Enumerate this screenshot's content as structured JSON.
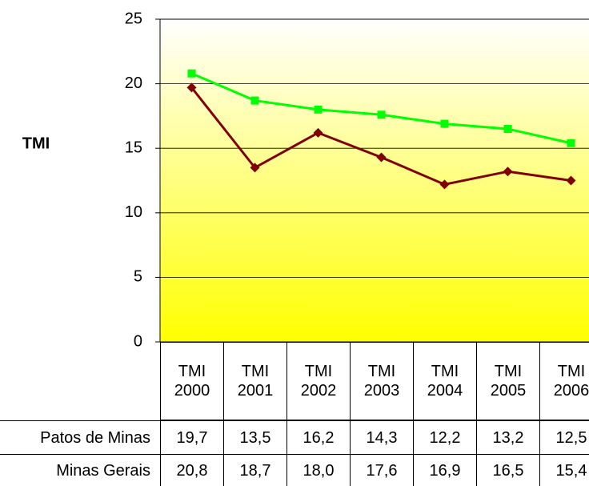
{
  "chart_data": {
    "type": "line",
    "y_label": "TMI",
    "categories": [
      "TMI 2000",
      "TMI 2001",
      "TMI 2002",
      "TMI 2003",
      "TMI 2004",
      "TMI 2005",
      "TMI 2006"
    ],
    "series": [
      {
        "name": "Patos de Minas",
        "color": "#800000",
        "marker": "diamond",
        "values": [
          19.7,
          13.5,
          16.2,
          14.3,
          12.2,
          13.2,
          12.5
        ],
        "value_labels": [
          "19,7",
          "13,5",
          "16,2",
          "14,3",
          "12,2",
          "13,2",
          "12,5"
        ]
      },
      {
        "name": "Minas Gerais",
        "color": "#00ff00",
        "marker": "square",
        "values": [
          20.8,
          18.7,
          18.0,
          17.6,
          16.9,
          16.5,
          15.4
        ],
        "value_labels": [
          "20,8",
          "18,7",
          "18,0",
          "17,6",
          "16,9",
          "16,5",
          "15,4"
        ]
      }
    ],
    "ylim": [
      0,
      25
    ],
    "yticks": [
      0,
      5,
      10,
      15,
      20,
      25
    ],
    "grid": true
  }
}
